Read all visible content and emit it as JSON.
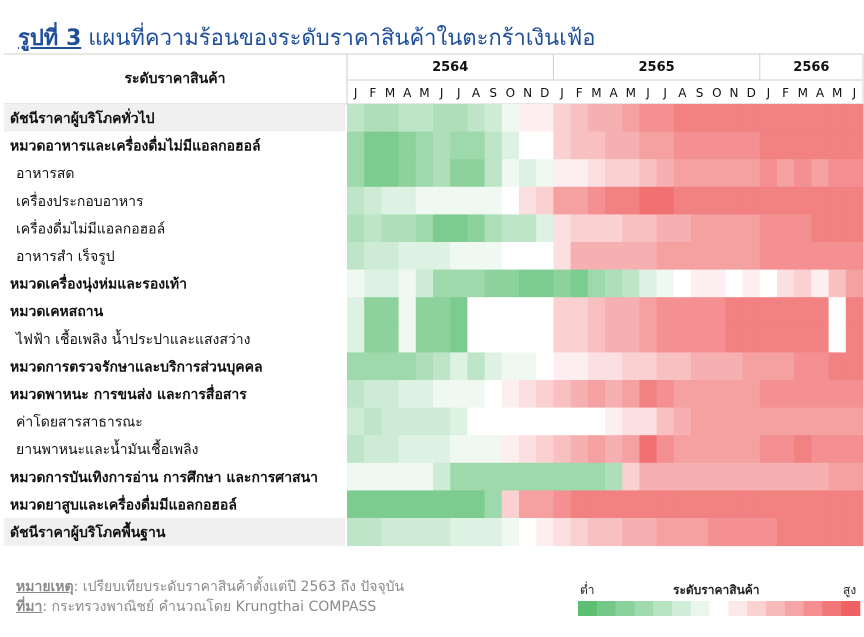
{
  "title": {
    "label": "รูปที่ 3",
    "text": "แผนที่ความร้อนของระดับราคาสินค้าในตะกร้าเงินเฟ้อ"
  },
  "note": {
    "label": "หมายเหตุ",
    "text": ": เปรียบเทียบระดับราคาสินค้าตั้งแต่ปี 2563 ถึง ปัจจุบัน"
  },
  "source": {
    "label": "ที่มา",
    "text": ": กระทรวงพาณิชย์ คำนวณโดย Krungthai COMPASS"
  },
  "legend": {
    "title": "ระดับราคาสินค้า",
    "low": "ต่ำ",
    "high": "สูง"
  },
  "colors": {
    "low": "#5cbf73",
    "mid": "#ffffff",
    "high": "#ef6163",
    "header_line": "#cfcfcf",
    "row_shade": "#f0f0f0"
  },
  "chart_data": {
    "type": "heatmap",
    "row_header": "ระดับราคาสินค้า",
    "years": [
      {
        "label": "2564",
        "months": 12
      },
      {
        "label": "2565",
        "months": 12
      },
      {
        "label": "2566",
        "months": 6
      }
    ],
    "month_labels": [
      "J",
      "F",
      "M",
      "A",
      "M",
      "J",
      "J",
      "A",
      "S",
      "O",
      "N",
      "D",
      "J",
      "F",
      "M",
      "A",
      "M",
      "J",
      "J",
      "A",
      "S",
      "O",
      "N",
      "D",
      "J",
      "F",
      "M",
      "A",
      "M",
      "J"
    ],
    "value_range": [
      -1,
      1
    ],
    "rows": [
      {
        "label": "ดัชนีราคาผู้บริโภคทั่วไป",
        "bold": true,
        "values": [
          -0.4,
          -0.5,
          -0.5,
          -0.4,
          -0.4,
          -0.5,
          -0.5,
          -0.4,
          -0.3,
          -0.1,
          0.1,
          0.1,
          0.3,
          0.4,
          0.5,
          0.5,
          0.6,
          0.7,
          0.7,
          0.8,
          0.8,
          0.8,
          0.8,
          0.8,
          0.8,
          0.8,
          0.8,
          0.8,
          0.8,
          0.8
        ]
      },
      {
        "label": "หมวดอาหารและเครื่องดื่มไม่มีแอลกอฮอล์",
        "bold": true,
        "values": [
          -0.6,
          -0.8,
          -0.8,
          -0.7,
          -0.6,
          -0.5,
          -0.6,
          -0.6,
          -0.4,
          -0.2,
          0.0,
          0.0,
          0.3,
          0.4,
          0.4,
          0.5,
          0.5,
          0.6,
          0.6,
          0.7,
          0.7,
          0.7,
          0.7,
          0.7,
          0.8,
          0.8,
          0.8,
          0.8,
          0.8,
          0.8
        ]
      },
      {
        "label": "อาหารสด",
        "bold": false,
        "values": [
          -0.6,
          -0.8,
          -0.8,
          -0.7,
          -0.6,
          -0.5,
          -0.7,
          -0.7,
          -0.4,
          -0.1,
          -0.2,
          -0.1,
          0.1,
          0.1,
          0.2,
          0.3,
          0.3,
          0.4,
          0.5,
          0.6,
          0.6,
          0.6,
          0.6,
          0.6,
          0.7,
          0.6,
          0.7,
          0.6,
          0.7,
          0.7
        ]
      },
      {
        "label": "เครื่องประกอบอาหาร",
        "bold": false,
        "values": [
          -0.4,
          -0.3,
          -0.2,
          -0.2,
          -0.1,
          -0.1,
          -0.1,
          -0.1,
          -0.1,
          0.0,
          0.2,
          0.3,
          0.6,
          0.6,
          0.7,
          0.8,
          0.8,
          0.9,
          0.9,
          0.8,
          0.8,
          0.8,
          0.8,
          0.8,
          0.8,
          0.8,
          0.8,
          0.8,
          0.8,
          0.8
        ]
      },
      {
        "label": "เครื่องดื่มไม่มีแอลกอฮอล์",
        "bold": false,
        "values": [
          -0.5,
          -0.4,
          -0.5,
          -0.5,
          -0.6,
          -0.8,
          -0.8,
          -0.7,
          -0.5,
          -0.4,
          -0.4,
          -0.2,
          0.2,
          0.3,
          0.3,
          0.3,
          0.4,
          0.4,
          0.5,
          0.5,
          0.6,
          0.6,
          0.6,
          0.6,
          0.7,
          0.7,
          0.7,
          0.8,
          0.8,
          0.8
        ]
      },
      {
        "label": "อาหารสำ เร็จรูป",
        "bold": false,
        "values": [
          -0.4,
          -0.3,
          -0.3,
          -0.2,
          -0.2,
          -0.2,
          -0.1,
          -0.1,
          -0.1,
          0.0,
          0.0,
          0.0,
          0.2,
          0.5,
          0.5,
          0.5,
          0.5,
          0.5,
          0.6,
          0.6,
          0.6,
          0.6,
          0.6,
          0.6,
          0.7,
          0.7,
          0.7,
          0.7,
          0.7,
          0.7
        ]
      },
      {
        "label": "หมวดเครื่องนุ่งห่มและรองเท้า",
        "bold": true,
        "values": [
          -0.1,
          -0.2,
          -0.2,
          -0.1,
          -0.3,
          -0.6,
          -0.6,
          -0.6,
          -0.7,
          -0.7,
          -0.8,
          -0.8,
          -0.7,
          -0.8,
          -0.6,
          -0.5,
          -0.4,
          -0.2,
          -0.1,
          0.0,
          0.1,
          0.1,
          0.0,
          0.1,
          0.0,
          0.2,
          0.3,
          0.1,
          0.4,
          0.6
        ]
      },
      {
        "label": "หมวดเคหสถาน",
        "bold": true,
        "values": [
          -0.2,
          -0.7,
          -0.7,
          -0.1,
          -0.7,
          -0.7,
          -0.8,
          0.0,
          0.0,
          0.0,
          0.0,
          0.0,
          0.3,
          0.3,
          0.4,
          0.5,
          0.5,
          0.6,
          0.7,
          0.7,
          0.7,
          0.7,
          0.8,
          0.8,
          0.8,
          0.8,
          0.8,
          0.8,
          0.0,
          0.8
        ]
      },
      {
        "label": "ไฟฟ้า เชื้อเพลิง น้ำประปาและแสงสว่าง",
        "bold": false,
        "values": [
          -0.2,
          -0.7,
          -0.7,
          -0.1,
          -0.7,
          -0.7,
          -0.8,
          0.0,
          0.0,
          0.0,
          0.0,
          0.0,
          0.3,
          0.3,
          0.4,
          0.5,
          0.5,
          0.6,
          0.7,
          0.7,
          0.7,
          0.7,
          0.8,
          0.8,
          0.8,
          0.8,
          0.8,
          0.8,
          0.0,
          0.8
        ]
      },
      {
        "label": "หมวดการตรวจรักษาและบริการส่วนบุคคล",
        "bold": true,
        "values": [
          -0.6,
          -0.6,
          -0.6,
          -0.6,
          -0.5,
          -0.4,
          -0.2,
          -0.4,
          -0.2,
          -0.1,
          -0.1,
          0.0,
          0.1,
          0.1,
          0.2,
          0.2,
          0.3,
          0.3,
          0.4,
          0.4,
          0.5,
          0.5,
          0.5,
          0.6,
          0.6,
          0.6,
          0.7,
          0.7,
          0.8,
          0.8
        ]
      },
      {
        "label": "หมวดพาหนะ การขนส่ง และการสื่อสาร",
        "bold": true,
        "values": [
          -0.4,
          -0.3,
          -0.3,
          -0.2,
          -0.2,
          -0.1,
          -0.1,
          -0.1,
          0.0,
          0.1,
          0.2,
          0.3,
          0.4,
          0.5,
          0.6,
          0.5,
          0.6,
          0.8,
          0.7,
          0.6,
          0.6,
          0.6,
          0.6,
          0.6,
          0.7,
          0.7,
          0.7,
          0.7,
          0.7,
          0.7
        ]
      },
      {
        "label": "ค่าโดยสารสาธารณะ",
        "bold": false,
        "values": [
          -0.3,
          -0.4,
          -0.3,
          -0.3,
          -0.3,
          -0.3,
          -0.2,
          0.0,
          0.0,
          0.0,
          0.0,
          0.0,
          0.0,
          0.0,
          0.0,
          0.1,
          0.2,
          0.2,
          0.4,
          0.5,
          0.6,
          0.6,
          0.6,
          0.6,
          0.6,
          0.6,
          0.6,
          0.6,
          0.6,
          0.6
        ]
      },
      {
        "label": "ยานพาหนะและน้ำมันเชื้อเพลิง",
        "bold": false,
        "values": [
          -0.4,
          -0.3,
          -0.3,
          -0.2,
          -0.2,
          -0.2,
          -0.1,
          -0.1,
          -0.1,
          0.1,
          0.2,
          0.3,
          0.4,
          0.5,
          0.6,
          0.5,
          0.6,
          0.9,
          0.7,
          0.6,
          0.6,
          0.6,
          0.6,
          0.6,
          0.7,
          0.7,
          0.8,
          0.7,
          0.7,
          0.7
        ]
      },
      {
        "label": "หมวดการบันเทิงการอ่าน การศึกษา และการศาสนา",
        "bold": true,
        "values": [
          -0.1,
          -0.1,
          -0.1,
          -0.1,
          -0.1,
          -0.3,
          -0.6,
          -0.6,
          -0.6,
          -0.6,
          -0.6,
          -0.6,
          -0.6,
          -0.6,
          -0.6,
          -0.5,
          0.3,
          0.5,
          0.5,
          0.5,
          0.5,
          0.5,
          0.5,
          0.5,
          0.5,
          0.5,
          0.5,
          0.5,
          0.6,
          0.6
        ]
      },
      {
        "label": "หมวดยาสูบและเครื่องดื่มมีแอลกอฮอล์",
        "bold": true,
        "values": [
          -0.8,
          -0.8,
          -0.8,
          -0.8,
          -0.8,
          -0.8,
          -0.8,
          -0.8,
          -0.6,
          0.3,
          0.6,
          0.6,
          0.7,
          0.8,
          0.8,
          0.8,
          0.8,
          0.8,
          0.8,
          0.8,
          0.8,
          0.8,
          0.8,
          0.8,
          0.8,
          0.8,
          0.8,
          0.8,
          0.8,
          0.8
        ]
      },
      {
        "label": "ดัชนีราคาผู้บริโภคพื้นฐาน",
        "bold": true,
        "values": [
          -0.4,
          -0.4,
          -0.3,
          -0.3,
          -0.3,
          -0.3,
          -0.2,
          -0.2,
          -0.2,
          -0.1,
          0.0,
          0.1,
          0.2,
          0.3,
          0.4,
          0.4,
          0.5,
          0.5,
          0.6,
          0.6,
          0.6,
          0.7,
          0.7,
          0.7,
          0.7,
          0.8,
          0.8,
          0.8,
          0.8,
          0.8
        ]
      }
    ],
    "legend_steps": 15
  }
}
